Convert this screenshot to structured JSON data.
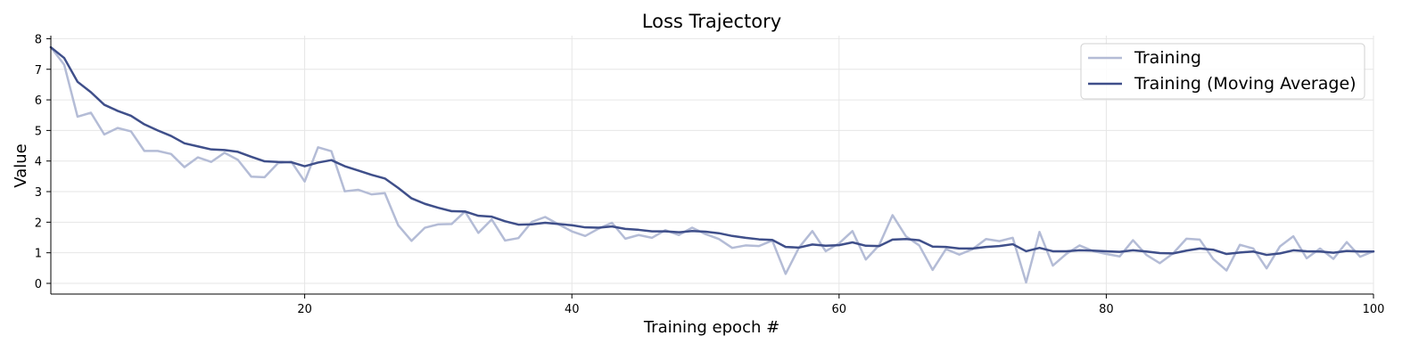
{
  "chart_data": {
    "type": "line",
    "title": "Loss Trajectory",
    "xlabel": "Training epoch #",
    "ylabel": "Value",
    "xlim": [
      1,
      100
    ],
    "ylim": [
      -0.35,
      8.1
    ],
    "xticks": [
      20,
      40,
      60,
      80,
      100
    ],
    "yticks": [
      0,
      1,
      2,
      3,
      4,
      5,
      6,
      7,
      8
    ],
    "grid": true,
    "legend_position": "top-right",
    "x": [
      1,
      2,
      3,
      4,
      5,
      6,
      7,
      8,
      9,
      10,
      11,
      12,
      13,
      14,
      15,
      16,
      17,
      18,
      19,
      20,
      21,
      22,
      23,
      24,
      25,
      26,
      27,
      28,
      29,
      30,
      31,
      32,
      33,
      34,
      35,
      36,
      37,
      38,
      39,
      40,
      41,
      42,
      43,
      44,
      45,
      46,
      47,
      48,
      49,
      50,
      51,
      52,
      53,
      54,
      55,
      56,
      57,
      58,
      59,
      60,
      61,
      62,
      63,
      64,
      65,
      66,
      67,
      68,
      69,
      70,
      71,
      72,
      73,
      74,
      75,
      76,
      77,
      78,
      79,
      80,
      81,
      82,
      83,
      84,
      85,
      86,
      87,
      88,
      89,
      90,
      91,
      92,
      93,
      94,
      95,
      96,
      97,
      98,
      99,
      100
    ],
    "series": [
      {
        "name": "Training",
        "color": "#b4bcd6",
        "values": [
          7.72,
          7.15,
          5.45,
          5.58,
          4.87,
          5.08,
          4.97,
          4.33,
          4.33,
          4.23,
          3.8,
          4.12,
          3.97,
          4.27,
          4.04,
          3.49,
          3.47,
          3.93,
          3.98,
          3.33,
          4.45,
          4.32,
          3.01,
          3.06,
          2.91,
          2.95,
          1.9,
          1.39,
          1.82,
          1.93,
          1.94,
          2.35,
          1.65,
          2.09,
          1.4,
          1.48,
          2.01,
          2.17,
          1.93,
          1.7,
          1.55,
          1.79,
          1.98,
          1.46,
          1.58,
          1.49,
          1.74,
          1.58,
          1.82,
          1.61,
          1.45,
          1.16,
          1.24,
          1.22,
          1.4,
          0.31,
          1.17,
          1.71,
          1.05,
          1.31,
          1.71,
          0.78,
          1.25,
          2.23,
          1.54,
          1.24,
          0.44,
          1.12,
          0.94,
          1.12,
          1.45,
          1.38,
          1.49,
          0.03,
          1.68,
          0.58,
          0.96,
          1.24,
          1.06,
          0.96,
          0.88,
          1.41,
          0.93,
          0.66,
          0.98,
          1.46,
          1.43,
          0.8,
          0.42,
          1.26,
          1.14,
          0.49,
          1.21,
          1.54,
          0.82,
          1.14,
          0.8,
          1.35,
          0.87,
          1.05
        ]
      },
      {
        "name": "Training (Moving Average)",
        "color": "#3f4f8a",
        "values": [
          7.72,
          7.37,
          6.59,
          6.25,
          5.84,
          5.64,
          5.48,
          5.2,
          5.0,
          4.82,
          4.58,
          4.48,
          4.38,
          4.36,
          4.3,
          4.14,
          3.99,
          3.97,
          3.96,
          3.83,
          3.95,
          4.03,
          3.83,
          3.69,
          3.55,
          3.43,
          3.12,
          2.78,
          2.6,
          2.47,
          2.36,
          2.35,
          2.21,
          2.18,
          2.03,
          1.92,
          1.93,
          1.98,
          1.94,
          1.9,
          1.83,
          1.82,
          1.86,
          1.78,
          1.75,
          1.7,
          1.7,
          1.67,
          1.71,
          1.69,
          1.64,
          1.55,
          1.49,
          1.44,
          1.42,
          1.19,
          1.17,
          1.27,
          1.23,
          1.25,
          1.34,
          1.23,
          1.22,
          1.43,
          1.45,
          1.41,
          1.2,
          1.19,
          1.14,
          1.14,
          1.19,
          1.22,
          1.28,
          1.05,
          1.16,
          1.05,
          1.05,
          1.08,
          1.07,
          1.05,
          1.03,
          1.08,
          1.04,
          0.99,
          0.98,
          1.07,
          1.14,
          1.1,
          0.96,
          1.01,
          1.04,
          0.93,
          0.98,
          1.08,
          1.05,
          1.04,
          1.0,
          1.06,
          1.04,
          1.04
        ]
      }
    ]
  }
}
